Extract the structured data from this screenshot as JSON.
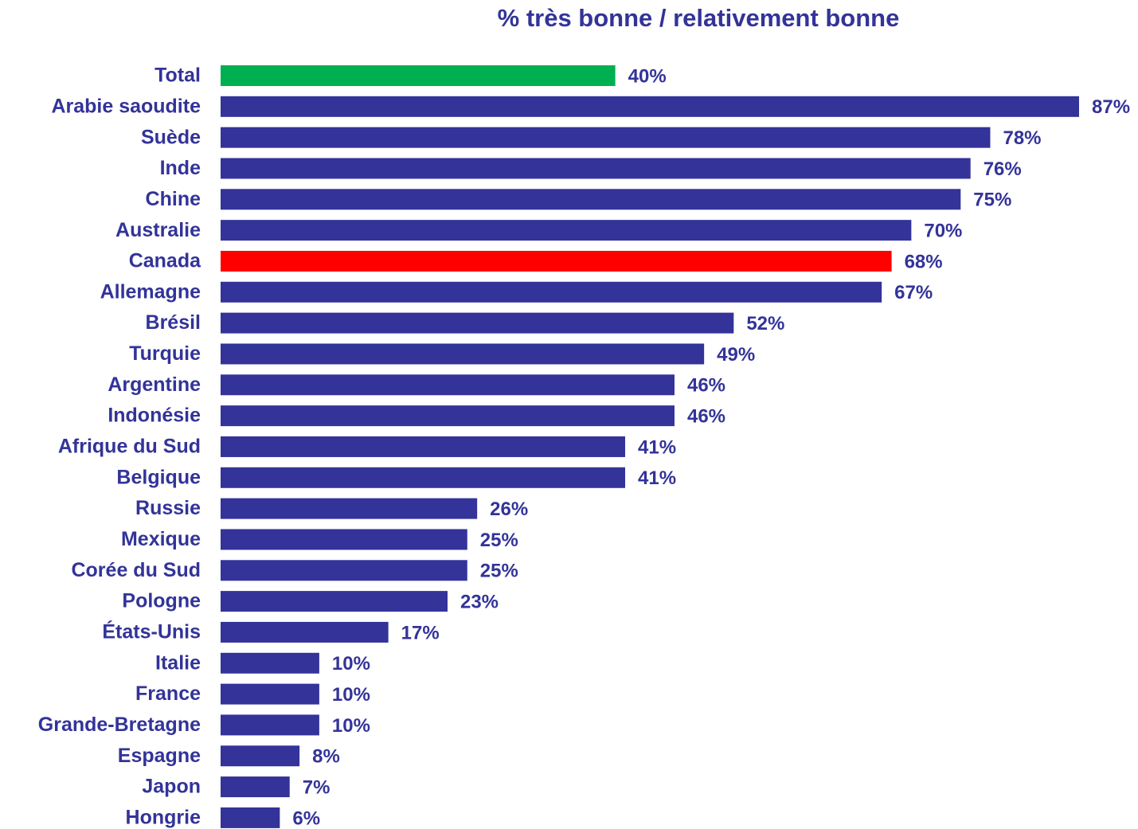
{
  "chart_data": {
    "type": "bar",
    "orientation": "horizontal",
    "title": "% très bonne / relativement bonne",
    "categories": [
      "Total",
      "Arabie saoudite",
      "Suède",
      "Inde",
      "Chine",
      "Australie",
      "Canada",
      "Allemagne",
      "Brésil",
      "Turquie",
      "Argentine",
      "Indonésie",
      "Afrique du Sud",
      "Belgique",
      "Russie",
      "Mexique",
      "Corée du Sud",
      "Pologne",
      "États-Unis",
      "Italie",
      "France",
      "Grande-Bretagne",
      "Espagne",
      "Japon",
      "Hongrie"
    ],
    "values": [
      40,
      87,
      78,
      76,
      75,
      70,
      68,
      67,
      52,
      49,
      46,
      46,
      41,
      41,
      26,
      25,
      25,
      23,
      17,
      10,
      10,
      10,
      8,
      7,
      6
    ],
    "value_labels": [
      "40%",
      "87%",
      "78%",
      "76%",
      "75%",
      "70%",
      "68%",
      "67%",
      "52%",
      "49%",
      "46%",
      "46%",
      "41%",
      "41%",
      "26%",
      "25%",
      "25%",
      "23%",
      "17%",
      "10%",
      "10%",
      "10%",
      "8%",
      "7%",
      "6%"
    ],
    "colors": [
      "#00b050",
      "#333399",
      "#333399",
      "#333399",
      "#333399",
      "#333399",
      "#ff0000",
      "#333399",
      "#333399",
      "#333399",
      "#333399",
      "#333399",
      "#333399",
      "#333399",
      "#333399",
      "#333399",
      "#333399",
      "#333399",
      "#333399",
      "#333399",
      "#333399",
      "#333399",
      "#333399",
      "#333399",
      "#333399"
    ],
    "grid": false
  }
}
